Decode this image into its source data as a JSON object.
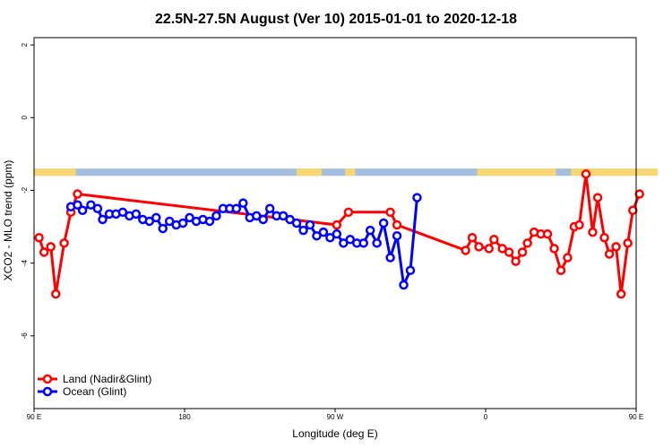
{
  "chart_data": {
    "type": "line",
    "title": "22.5N-27.5N August (Ver 10)   2015-01-01 to 2020-12-18",
    "xlabel": "Longitude (deg E)",
    "ylabel": "XCO2 - MLO trend (ppm)",
    "xlim": [
      90,
      450
    ],
    "ylim": [
      -8,
      2.2
    ],
    "x_ticks": [
      {
        "value": 90,
        "label": "90 E"
      },
      {
        "value": 180,
        "label": "180"
      },
      {
        "value": 270,
        "label": "90 W"
      },
      {
        "value": 360,
        "label": "0"
      },
      {
        "value": 450,
        "label": "90 E"
      },
      {
        "value": 540,
        "label": "180"
      }
    ],
    "y_ticks": [
      2,
      0,
      -2,
      -4,
      -6
    ],
    "legend_position": "bottom-left",
    "grid": false,
    "land_ocean_strip": {
      "y_range": [
        -1.4,
        -1.6
      ],
      "land_color": "#f7d774",
      "ocean_color": "#a6bedd",
      "land_segments": [
        [
          90,
          115
        ],
        [
          247,
          262
        ],
        [
          276,
          282
        ],
        [
          355,
          402
        ],
        [
          411,
          463
        ]
      ]
    },
    "series": [
      {
        "name": "Land (Nadir&Glint)",
        "color": "#ff0000",
        "points": [
          [
            93,
            -3.3
          ],
          [
            96,
            -3.7
          ],
          [
            100,
            -3.55
          ],
          [
            103,
            -4.85
          ],
          [
            108,
            -3.45
          ],
          [
            112,
            -2.6
          ],
          [
            116,
            -2.1
          ],
          [
            271,
            -2.95
          ],
          [
            278,
            -2.6
          ],
          [
            303,
            -2.6
          ],
          [
            307,
            -2.95
          ],
          [
            348,
            -3.65
          ],
          [
            352,
            -3.3
          ],
          [
            356,
            -3.55
          ],
          [
            362,
            -3.6
          ],
          [
            365,
            -3.35
          ],
          [
            370,
            -3.6
          ],
          [
            374,
            -3.7
          ],
          [
            378,
            -3.95
          ],
          [
            382,
            -3.7
          ],
          [
            385,
            -3.45
          ],
          [
            389,
            -3.15
          ],
          [
            393,
            -3.2
          ],
          [
            397,
            -3.2
          ],
          [
            401,
            -3.6
          ],
          [
            405,
            -4.2
          ],
          [
            409,
            -3.85
          ],
          [
            413,
            -3.0
          ],
          [
            416,
            -2.95
          ],
          [
            420,
            -1.55
          ],
          [
            424,
            -3.15
          ],
          [
            427,
            -2.2
          ],
          [
            431,
            -3.3
          ],
          [
            434,
            -3.75
          ],
          [
            438,
            -3.55
          ],
          [
            441,
            -4.85
          ],
          [
            445,
            -3.45
          ],
          [
            448,
            -2.55
          ],
          [
            452,
            -2.1
          ]
        ]
      },
      {
        "name": "Ocean (Glint)",
        "color": "#0000ff",
        "points": [
          [
            112,
            -2.45
          ],
          [
            116,
            -2.4
          ],
          [
            119,
            -2.55
          ],
          [
            124,
            -2.4
          ],
          [
            128,
            -2.5
          ],
          [
            131,
            -2.8
          ],
          [
            135,
            -2.65
          ],
          [
            139,
            -2.65
          ],
          [
            143,
            -2.6
          ],
          [
            147,
            -2.7
          ],
          [
            151,
            -2.65
          ],
          [
            155,
            -2.8
          ],
          [
            159,
            -2.85
          ],
          [
            163,
            -2.75
          ],
          [
            167,
            -3.05
          ],
          [
            171,
            -2.85
          ],
          [
            175,
            -2.95
          ],
          [
            179,
            -2.9
          ],
          [
            183,
            -2.75
          ],
          [
            187,
            -2.85
          ],
          [
            191,
            -2.8
          ],
          [
            195,
            -2.85
          ],
          [
            199,
            -2.7
          ],
          [
            203,
            -2.5
          ],
          [
            207,
            -2.5
          ],
          [
            211,
            -2.5
          ],
          [
            215,
            -2.35
          ],
          [
            219,
            -2.75
          ],
          [
            223,
            -2.7
          ],
          [
            227,
            -2.8
          ],
          [
            231,
            -2.5
          ],
          [
            235,
            -2.7
          ],
          [
            239,
            -2.7
          ],
          [
            243,
            -2.8
          ],
          [
            247,
            -2.9
          ],
          [
            251,
            -3.1
          ],
          [
            255,
            -2.95
          ],
          [
            259,
            -3.25
          ],
          [
            263,
            -3.15
          ],
          [
            267,
            -3.3
          ],
          [
            271,
            -3.2
          ],
          [
            275,
            -3.45
          ],
          [
            279,
            -3.35
          ],
          [
            283,
            -3.45
          ],
          [
            287,
            -3.45
          ],
          [
            291,
            -3.1
          ],
          [
            295,
            -3.45
          ],
          [
            299,
            -2.9
          ],
          [
            303,
            -3.85
          ],
          [
            307,
            -3.25
          ],
          [
            311,
            -4.6
          ],
          [
            315,
            -4.2
          ],
          [
            319,
            -2.2
          ]
        ]
      }
    ]
  }
}
